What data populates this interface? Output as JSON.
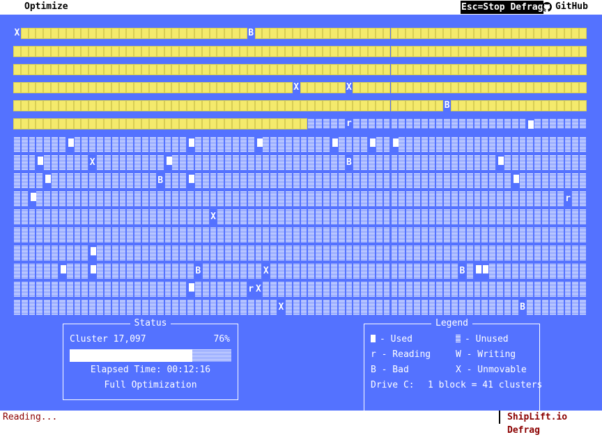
{
  "header": {
    "title": "Optimize",
    "stop_hint": "Esc=Stop Defrag",
    "github_label": "GitHub"
  },
  "disk_map": {
    "columns": 76,
    "rows": [
      "XUUUUUUUUUUUUUUUUUUUUUUUUUUUUUUBUUUUUUUUUUUUUUUUUUUUUUUUUUUUUUUUUUUUUUUUUUUU",
      "UUUUUUUUUUUUUUUUUUUUUUUUUUUUUUUUUUUUUUUUUUUUUUUUUUUUUUUUUUUUUUUUUUUUUUUUUUUU",
      "UUUUUUUUUUUUUUUUUUUUUUUUUUUUUUUUUUUUUUUUUUUUUUUUUUUUUUUUUUUUUUUUUUUUUUUUUUUU",
      "UUUUUUUUUUUUUUUUUUUUUUUUUUUUUUUUUUUUUXUUUUUUXUUUUUUUUUUUUUUUUUUUUUUUUUUUUUUU",
      "UUUUUUUUUUUUUUUUUUUUUUUUUUUUUUUUUUUUUUUUUUUUUUUUUUUUUUUUUBUUUUUUUUUUUUUUUUUU",
      "UUUUUUUUUUUUUUUUUUUUUUUUUUUUUUUUUUUUUUU.....r.......................#.....",
      ".......#...............#........#.........#....#..#.........................",
      "...#......X.........#.......................B...................#...........",
      "....#..............B...#..........................................#.......",
      "..#......................................................................r",
      "..........................X..................................................",
      "..............................................................................",
      "..........#..............................................................",
      "......#...#.............B........X.........................B.##......",
      ".......................#.......rX..........................................",
      "...................................X...............................B......."
    ]
  },
  "status": {
    "title": "Status",
    "cluster_label": "Cluster 17,097",
    "percent_label": "76%",
    "progress": 0.76,
    "elapsed_label": "Elapsed Time: 00:12:16",
    "mode_label": "Full Optimization"
  },
  "legend": {
    "title": "Legend",
    "used": "- Used",
    "unused": "- Unused",
    "reading": "r - Reading",
    "writing": "W - Writing",
    "bad": "B - Bad",
    "unmovable": "X - Unmovable",
    "drive": "Drive C:",
    "scale": "1 block = 41 clusters"
  },
  "footer": {
    "status": "Reading...",
    "brand": "ShipLift.io Defrag"
  },
  "colors": {
    "background": "#5472ff",
    "used": "#f4ea6c",
    "footer_text": "#8b0000"
  }
}
